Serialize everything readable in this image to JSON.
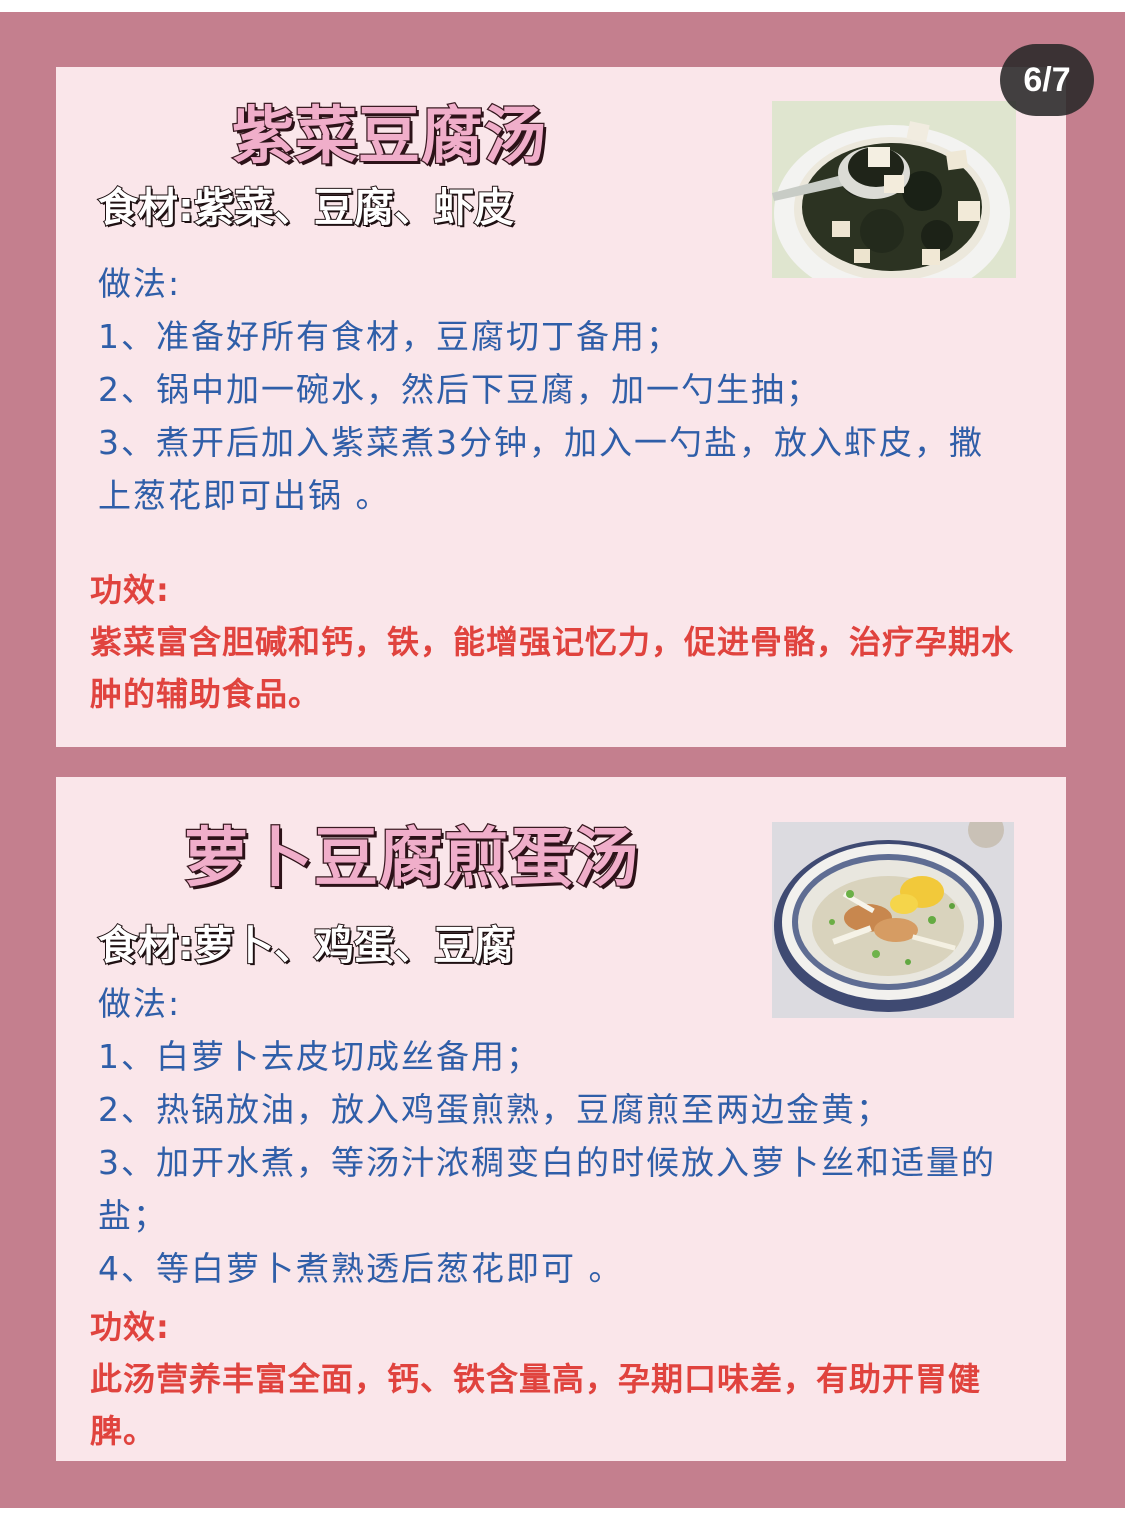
{
  "page_indicator": "6/7",
  "recipes": [
    {
      "title": "紫菜豆腐汤",
      "ingredients": "食材:紫菜、豆腐、虾皮",
      "method_heading": "做法:",
      "steps": [
        "1、准备好所有食材，豆腐切丁备用；",
        "2、锅中加一碗水，然后下豆腐，加一勺生抽；",
        "3、煮开后加入紫菜煮3分钟，加入一勺盐，放入虾皮，撒上葱花即可出锅 。"
      ],
      "effect_heading": "功效:",
      "effect": "紫菜富含胆碱和钙，铁，能增强记忆力，促进骨骼，治疗孕期水肿的辅助食品。",
      "photo_icon": "seaweed-tofu-soup-photo"
    },
    {
      "title": "萝卜豆腐煎蛋汤",
      "ingredients": "食材:萝卜、鸡蛋、豆腐",
      "method_heading": "做法:",
      "steps": [
        "1、白萝卜去皮切成丝备用；",
        "2、热锅放油，放入鸡蛋煎熟，豆腐煎至两边金黄；",
        "3、加开水煮，等汤汁浓稠变白的时候放入萝卜丝和适量的盐；",
        "4、等白萝卜煮熟透后葱花即可 。"
      ],
      "effect_heading": "功效:",
      "effect": "此汤营养丰富全面，钙、铁含量高，孕期口味差，有助开胃健脾。",
      "photo_icon": "radish-tofu-egg-soup-photo"
    }
  ],
  "colors": {
    "frame": "#c47f8e",
    "card": "#fae6ea",
    "title_fill": "#f0aeca",
    "method_text": "#2f5ea8",
    "effect_text": "#e0433e"
  }
}
